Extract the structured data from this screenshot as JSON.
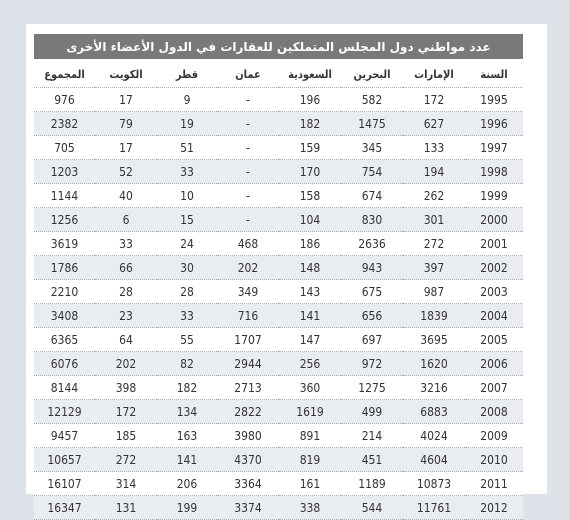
{
  "title": "عدد مواطني دول المجلس المتملكين للعقارات في الدول الأعضاء الأخرى",
  "headers": [
    "السنة",
    "الإمارات",
    "البحرين",
    "السعودية",
    "عمان",
    "قطر",
    "الكويت",
    "المجموع"
  ],
  "rows": [
    [
      "1995",
      "172",
      "582",
      "196",
      "-",
      "9",
      "17",
      "976"
    ],
    [
      "1996",
      "627",
      "1475",
      "182",
      "-",
      "19",
      "79",
      "2382"
    ],
    [
      "1997",
      "133",
      "345",
      "159",
      "-",
      "51",
      "17",
      "705"
    ],
    [
      "1998",
      "194",
      "754",
      "170",
      "-",
      "33",
      "52",
      "1203"
    ],
    [
      "1999",
      "262",
      "674",
      "158",
      "-",
      "10",
      "40",
      "1144"
    ],
    [
      "2000",
      "301",
      "830",
      "104",
      "-",
      "15",
      "6",
      "1256"
    ],
    [
      "2001",
      "272",
      "2636",
      "186",
      "468",
      "24",
      "33",
      "3619"
    ],
    [
      "2002",
      "397",
      "943",
      "148",
      "202",
      "30",
      "66",
      "1786"
    ],
    [
      "2003",
      "987",
      "675",
      "143",
      "349",
      "28",
      "28",
      "2210"
    ],
    [
      "2004",
      "1839",
      "656",
      "141",
      "716",
      "33",
      "23",
      "3408"
    ],
    [
      "2005",
      "3695",
      "697",
      "147",
      "1707",
      "55",
      "64",
      "6365"
    ],
    [
      "2006",
      "1620",
      "972",
      "256",
      "2944",
      "82",
      "202",
      "6076"
    ],
    [
      "2007",
      "3216",
      "1275",
      "360",
      "2713",
      "182",
      "398",
      "8144"
    ],
    [
      "2008",
      "6883",
      "499",
      "1619",
      "2822",
      "134",
      "172",
      "12129"
    ],
    [
      "2009",
      "4024",
      "214",
      "891",
      "3980",
      "163",
      "185",
      "9457"
    ],
    [
      "2010",
      "4604",
      "451",
      "819",
      "4370",
      "141",
      "272",
      "10657"
    ],
    [
      "2011",
      "10873",
      "1189",
      "161",
      "3364",
      "206",
      "314",
      "16107"
    ],
    [
      "2012",
      "11761",
      "544",
      "338",
      "3374",
      "199",
      "131",
      "16347"
    ]
  ]
}
